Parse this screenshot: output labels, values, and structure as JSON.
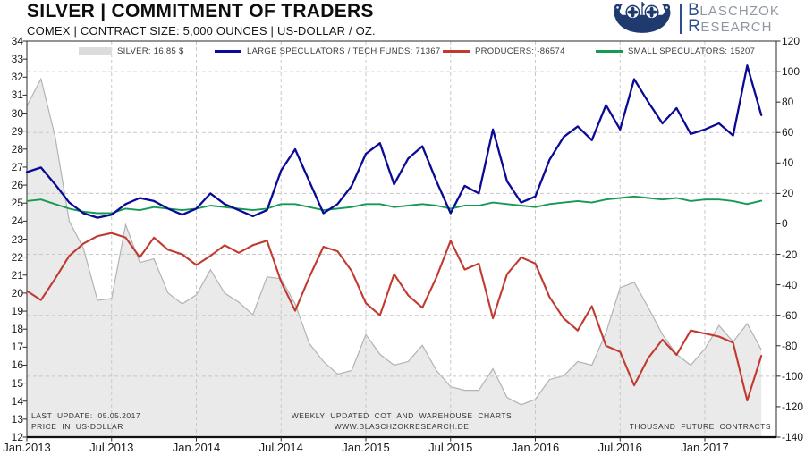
{
  "header": {
    "title": "SILVER | COMMITMENT OF TRADERS",
    "subtitle": "COMEX | CONTRACT SIZE: 5,000 OUNCES | US-DOLLAR / OZ.",
    "logo": {
      "icon": "viking-ship-icon",
      "cap1": "B",
      "rest1": "LASCHZOK",
      "cap2": "R",
      "rest2": "ESEARCH",
      "accent_color": "#2b4d8c",
      "text_color": "#8f97a1"
    }
  },
  "legend": [
    {
      "label": "SILVER: 16,85 $",
      "type": "area",
      "color": "#dcdcdc"
    },
    {
      "label": "LARGE SPECULATORS / TECH FUNDS: 71367",
      "type": "line",
      "color": "#0a0a96"
    },
    {
      "label": "PRODUCERS: -86574",
      "type": "line",
      "color": "#c13a30"
    },
    {
      "label": "SMALL SPECULATORS: 15207",
      "type": "line",
      "color": "#169a52"
    }
  ],
  "footnotes": {
    "last_update": "LAST UPDATE: 05.05.2017",
    "left_axis_note": "PRICE IN US-DOLLAR",
    "center_line1": "WEEKLY UPDATED COT AND WAREHOUSE CHARTS",
    "center_line2": "WWW.BLASCHZOKRESEARCH.DE",
    "right_axis_note": "THOUSAND FUTURE CONTRACTS"
  },
  "chart_data": {
    "type": "line",
    "title": "SILVER | COMMITMENT OF TRADERS",
    "x_unit": "months since Jan 2013 (weekly chart approximated at monthly resolution)",
    "x_range": [
      "Jan 2013",
      "May 2017"
    ],
    "x_tick_labels": [
      "Jan.2013",
      "Jul.2013",
      "Jan.2014",
      "Jul.2014",
      "Jan.2015",
      "Jul.2015",
      "Jan.2016",
      "Jul.2016",
      "Jan.2017"
    ],
    "x_tick_interval_months": 6,
    "left_axis": {
      "min": 12,
      "max": 34,
      "step": 1,
      "label": "PRICE IN US-DOLLAR"
    },
    "right_axis": {
      "min": -140,
      "max": 120,
      "step": 20,
      "label": "THOUSAND FUTURE CONTRACTS"
    },
    "grid": {
      "horizontal_at_right_values": [
        100,
        60,
        20,
        -20,
        -60,
        -100
      ],
      "vertical_at_x_ticks": true,
      "style": "dashed"
    },
    "series": [
      {
        "name": "SILVER",
        "axis": "left",
        "unit": "USD/oz",
        "style": "area",
        "fill": "#eaeaea",
        "color": "#b3b3b3",
        "last_value_label": "16,85 $",
        "values": [
          30.4,
          31.9,
          28.7,
          24.0,
          22.5,
          19.6,
          19.7,
          23.8,
          21.7,
          21.9,
          20.0,
          19.4,
          19.9,
          21.3,
          20.0,
          19.5,
          18.8,
          20.9,
          20.8,
          19.4,
          17.2,
          16.2,
          15.5,
          15.7,
          17.7,
          16.6,
          16.0,
          16.2,
          17.1,
          15.7,
          14.8,
          14.6,
          14.6,
          15.8,
          14.2,
          13.8,
          14.1,
          15.2,
          15.4,
          16.2,
          16.0,
          17.8,
          20.3,
          20.6,
          19.2,
          17.7,
          16.6,
          16.0,
          16.9,
          18.2,
          17.3,
          18.3,
          16.85
        ]
      },
      {
        "name": "LARGE SPECULATORS / TECH FUNDS",
        "axis": "right",
        "unit": "thousand contracts",
        "style": "line",
        "color": "#0a0a96",
        "last_value_label": "71367",
        "values": [
          34,
          37,
          26,
          14,
          7,
          4,
          6,
          13,
          17,
          15,
          10,
          6,
          10,
          20,
          13,
          9,
          5,
          9,
          35,
          49,
          28,
          7,
          13,
          25,
          46,
          53,
          26,
          43,
          51,
          28,
          7,
          25,
          20,
          62,
          28,
          14,
          18,
          42,
          57,
          64,
          55,
          78,
          62,
          95,
          80,
          66,
          76,
          59,
          62,
          66,
          58,
          104,
          71.4
        ]
      },
      {
        "name": "PRODUCERS",
        "axis": "right",
        "unit": "thousand contracts",
        "style": "line",
        "color": "#c13a30",
        "last_value_label": "-86574",
        "values": [
          -44,
          -50,
          -36,
          -21,
          -13,
          -8,
          -6,
          -9,
          -22,
          -9,
          -17,
          -20,
          -27,
          -21,
          -14,
          -19,
          -14,
          -11,
          -38,
          -57,
          -35,
          -15,
          -18,
          -31,
          -52,
          -60,
          -33,
          -47,
          -55,
          -35,
          -11,
          -30,
          -26,
          -62,
          -33,
          -22,
          -26,
          -48,
          -62,
          -70,
          -54,
          -80,
          -84,
          -106,
          -88,
          -76,
          -86,
          -70,
          -72,
          -74,
          -78,
          -116,
          -86.6
        ]
      },
      {
        "name": "SMALL SPECULATORS",
        "axis": "right",
        "unit": "thousand contracts",
        "style": "line",
        "color": "#169a52",
        "last_value_label": "15207",
        "values": [
          15,
          16,
          13,
          10,
          8,
          7,
          7,
          10,
          9,
          11,
          10,
          9,
          10,
          12,
          11,
          10,
          9,
          10,
          13,
          13,
          11,
          9,
          10,
          11,
          13,
          13,
          11,
          12,
          13,
          12,
          10,
          12,
          12,
          14,
          13,
          12,
          11,
          13,
          14,
          15,
          14,
          16,
          17,
          18,
          17,
          16,
          17,
          15,
          16,
          16,
          15,
          13,
          15.2
        ]
      }
    ]
  }
}
